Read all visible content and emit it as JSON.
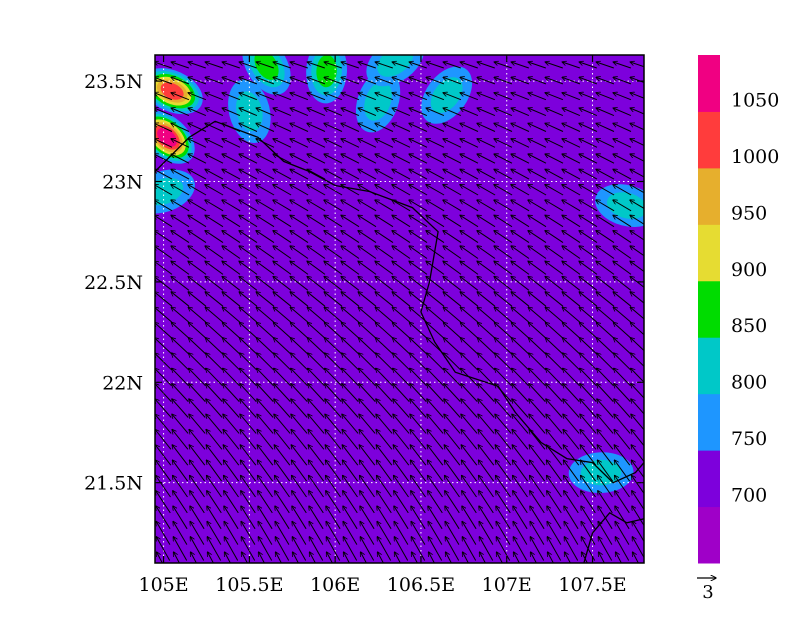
{
  "chart_data": {
    "type": "heatmap",
    "title": "",
    "xlabel": "",
    "ylabel": "",
    "xlim": [
      104.95,
      107.8
    ],
    "ylim": [
      21.1,
      23.63
    ],
    "x_ticks": [
      {
        "value": 105.0,
        "label": "105E"
      },
      {
        "value": 105.5,
        "label": "105.5E"
      },
      {
        "value": 106.0,
        "label": "106E"
      },
      {
        "value": 106.5,
        "label": "106.5E"
      },
      {
        "value": 107.0,
        "label": "107E"
      },
      {
        "value": 107.5,
        "label": "107.5E"
      }
    ],
    "y_ticks": [
      {
        "value": 21.5,
        "label": "21.5N"
      },
      {
        "value": 22.0,
        "label": "22N"
      },
      {
        "value": 22.5,
        "label": "22.5N"
      },
      {
        "value": 23.0,
        "label": "23N"
      },
      {
        "value": 23.5,
        "label": "23.5N"
      }
    ],
    "grid": true,
    "background_level": 700,
    "colorbar": {
      "colors": [
        "#9f00c8",
        "#7d00dc",
        "#1e96ff",
        "#00c8c8",
        "#00dc00",
        "#e6dc32",
        "#e6af2d",
        "#ff3c3c",
        "#f00082"
      ],
      "levels": [
        700,
        750,
        800,
        850,
        900,
        950,
        1000,
        1050
      ],
      "labels": [
        "700",
        "750",
        "800",
        "850",
        "900",
        "950",
        "1000",
        "1050"
      ]
    },
    "reference_vector": {
      "value": 3,
      "label": "3"
    },
    "wind_field": {
      "description_free": true,
      "south_direction_deg": 118,
      "north_direction_deg": 162,
      "south_speed": 3.6,
      "north_speed": 2.4
    },
    "high_patches": [
      {
        "lon": 105.05,
        "lat": 23.45,
        "peak_level": 1000
      },
      {
        "lon": 105.02,
        "lat": 23.22,
        "peak_level": 1050
      },
      {
        "lon": 105.6,
        "lat": 23.58,
        "peak_level": 850
      },
      {
        "lon": 105.5,
        "lat": 23.35,
        "peak_level": 800
      },
      {
        "lon": 105.95,
        "lat": 23.55,
        "peak_level": 850
      },
      {
        "lon": 106.25,
        "lat": 23.4,
        "peak_level": 800
      },
      {
        "lon": 106.65,
        "lat": 23.43,
        "peak_level": 800
      },
      {
        "lon": 106.35,
        "lat": 23.6,
        "peak_level": 800
      },
      {
        "lon": 105.0,
        "lat": 22.95,
        "peak_level": 800
      },
      {
        "lon": 107.55,
        "lat": 21.55,
        "peak_level": 800
      },
      {
        "lon": 107.7,
        "lat": 22.88,
        "peak_level": 800
      }
    ],
    "coastline": [
      [
        [
          104.95,
          23.05
        ],
        [
          105.15,
          23.22
        ],
        [
          105.3,
          23.3
        ],
        [
          105.55,
          23.22
        ],
        [
          105.7,
          23.1
        ],
        [
          105.85,
          23.05
        ],
        [
          106.0,
          22.98
        ],
        [
          106.2,
          22.95
        ],
        [
          106.45,
          22.87
        ],
        [
          106.6,
          22.75
        ],
        [
          106.55,
          22.5
        ],
        [
          106.5,
          22.35
        ],
        [
          106.58,
          22.2
        ],
        [
          106.7,
          22.05
        ],
        [
          106.95,
          21.98
        ],
        [
          107.05,
          21.85
        ],
        [
          107.2,
          21.7
        ],
        [
          107.35,
          21.62
        ],
        [
          107.5,
          21.6
        ],
        [
          107.62,
          21.5
        ],
        [
          107.75,
          21.55
        ],
        [
          107.8,
          21.6
        ]
      ],
      [
        [
          107.45,
          21.1
        ],
        [
          107.5,
          21.25
        ],
        [
          107.6,
          21.35
        ],
        [
          107.7,
          21.3
        ],
        [
          107.8,
          21.32
        ]
      ]
    ]
  }
}
